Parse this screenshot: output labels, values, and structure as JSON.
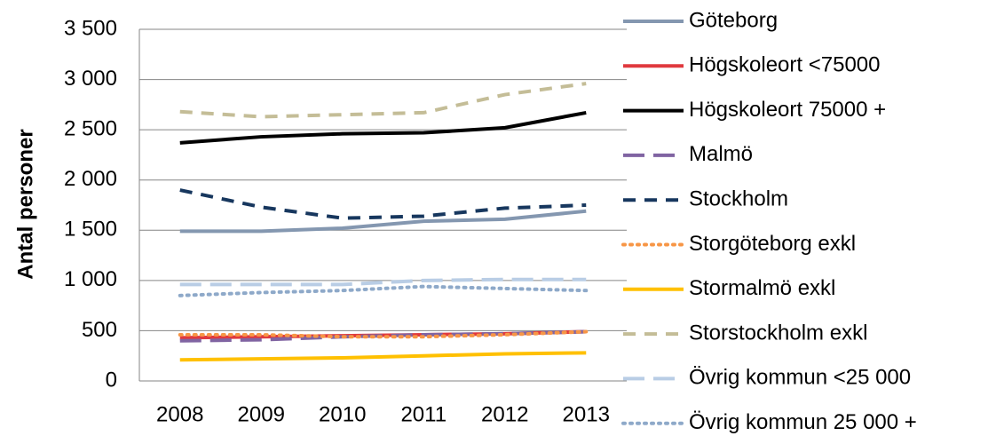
{
  "chart_data": {
    "type": "line",
    "y_label": "Antal personer",
    "categories": [
      "2008",
      "2009",
      "2010",
      "2011",
      "2012",
      "2013"
    ],
    "ylim": [
      0,
      3500
    ],
    "yticks": [
      0,
      500,
      {
        "value": 1000,
        "label": "1 000"
      },
      {
        "value": 1500,
        "label": "1 500"
      },
      {
        "value": 2000,
        "label": "2 000"
      },
      {
        "value": 2500,
        "label": "2 500"
      },
      {
        "value": 3000,
        "label": "3 000"
      },
      {
        "value": 3500,
        "label": "3 500"
      }
    ],
    "grid": true,
    "legend": "right",
    "series": [
      {
        "name": "Göteborg",
        "color": "#8497b0",
        "dash": "solid",
        "values": [
          1490,
          1490,
          1520,
          1590,
          1610,
          1690
        ]
      },
      {
        "name": "Högskoleort <75000",
        "color": "#e0393e",
        "dash": "solid",
        "values": [
          430,
          440,
          450,
          460,
          470,
          490
        ]
      },
      {
        "name": "Högskoleort 75000 +",
        "color": "#000000",
        "dash": "solid",
        "values": [
          2370,
          2430,
          2460,
          2470,
          2520,
          2670
        ]
      },
      {
        "name": "Malmö",
        "color": "#8064a2",
        "dash": "longdash",
        "values": [
          400,
          410,
          440,
          460,
          470,
          490
        ]
      },
      {
        "name": "Stockholm",
        "color": "#17375e",
        "dash": "dashed",
        "values": [
          1900,
          1730,
          1620,
          1640,
          1720,
          1750
        ]
      },
      {
        "name": "Storgöteborg exkl",
        "color": "#f79646",
        "dash": "dotted",
        "values": [
          460,
          460,
          440,
          440,
          460,
          490
        ]
      },
      {
        "name": "Stormalmö exkl",
        "color": "#ffc000",
        "dash": "solid",
        "values": [
          210,
          220,
          230,
          250,
          270,
          280
        ]
      },
      {
        "name": "Storstockholm exkl",
        "color": "#c4bd97",
        "dash": "dashed",
        "values": [
          2680,
          2630,
          2650,
          2670,
          2850,
          2960
        ]
      },
      {
        "name": "Övrig kommun <25 000",
        "color": "#b9cde5",
        "dash": "longdash",
        "values": [
          960,
          960,
          960,
          1000,
          1010,
          1010
        ]
      },
      {
        "name": "Övrig kommun 25 000 +",
        "color": "#8ea9c9",
        "dash": "dotted",
        "values": [
          850,
          880,
          900,
          940,
          920,
          900
        ]
      }
    ]
  }
}
